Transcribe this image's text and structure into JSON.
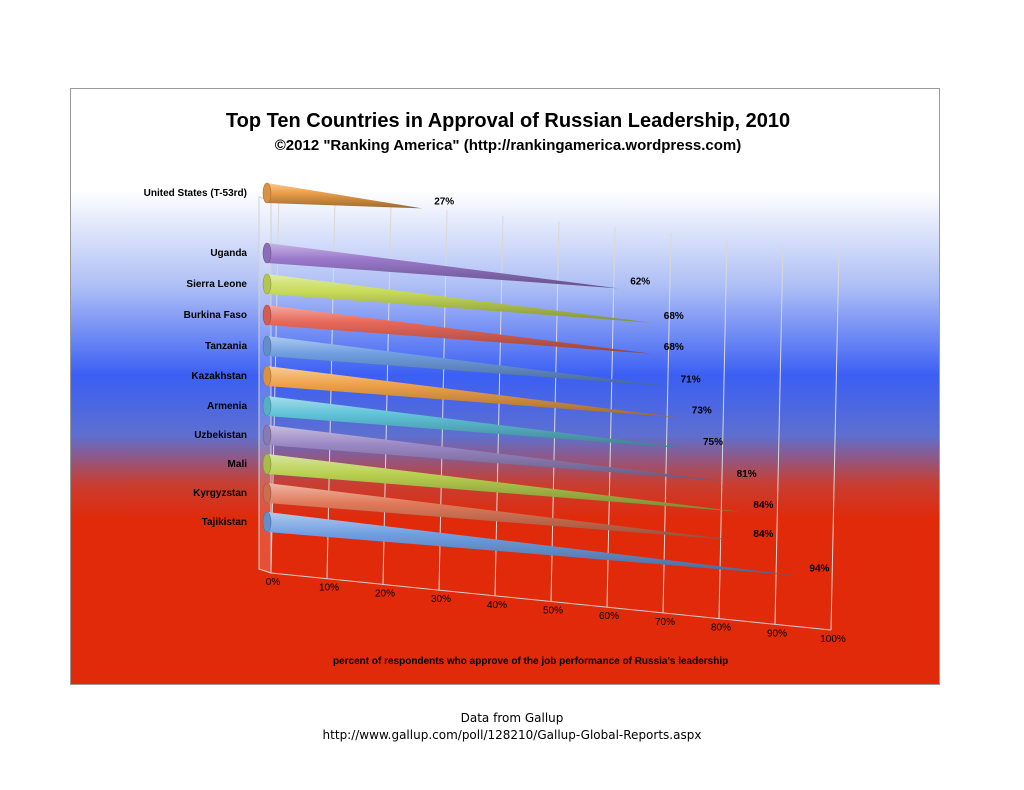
{
  "source": {
    "line1": "Data from Gallup",
    "line2": "http://www.gallup.com/poll/128210/Gallup-Global-Reports.aspx"
  },
  "chart_data": {
    "type": "bar",
    "orientation": "horizontal",
    "style": "3d-cone",
    "title": "Top Ten Countries in Approval of Russian Leadership, 2010",
    "subtitle": "©2012 \"Ranking America\" (http://rankingamerica.wordpress.com)",
    "xlabel": "percent of respondents who approve of the job performance of Russia's leadership",
    "xlim": [
      0,
      100
    ],
    "xticks": [
      "0%",
      "10%",
      "20%",
      "30%",
      "40%",
      "50%",
      "60%",
      "70%",
      "80%",
      "90%",
      "100%"
    ],
    "grid": true,
    "background": "russian-flag-gradient",
    "colors": {
      "white": "#ffffff",
      "blue": "#3b5ff4",
      "red": "#e02a0a"
    },
    "categories": [
      "United States (T-53rd)",
      "Uganda",
      "Sierra Leone",
      "Burkina Faso",
      "Tanzania",
      "Kazakhstan",
      "Armenia",
      "Uzbekistan",
      "Mali",
      "Kyrgyzstan",
      "Tajikistan"
    ],
    "values": [
      27,
      62,
      68,
      68,
      71,
      73,
      75,
      81,
      84,
      84,
      94
    ],
    "value_labels": [
      "27%",
      "62%",
      "68%",
      "68%",
      "71%",
      "73%",
      "75%",
      "81%",
      "84%",
      "84%",
      "94%"
    ],
    "bar_colors": [
      "#f0a24a",
      "#9a79cc",
      "#c8dc5a",
      "#e8685a",
      "#6f9ee0",
      "#f0a24a",
      "#5fc2d8",
      "#9a88c4",
      "#b8d050",
      "#e07a5a",
      "#6f9ee0"
    ]
  }
}
